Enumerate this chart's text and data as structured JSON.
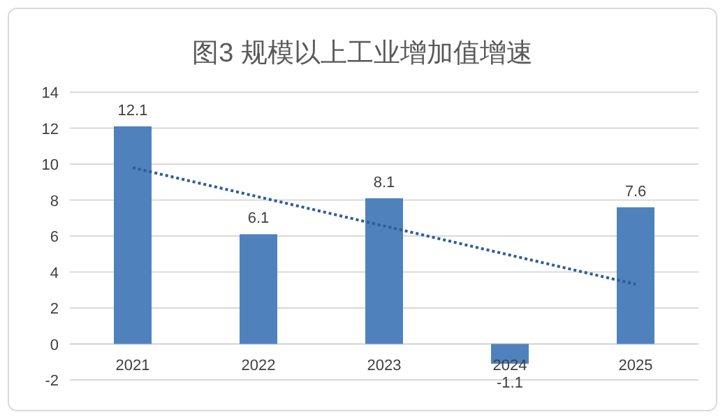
{
  "chart_data": {
    "type": "bar",
    "title": "图3 规模以上工业增加值增速",
    "categories": [
      "2021",
      "2022",
      "2023",
      "2024",
      "2025"
    ],
    "series": [
      {
        "color": "#4f81bd",
        "values": [
          12.1,
          6.1,
          8.1,
          -1.1,
          7.6
        ]
      },
      {
        "type": "line",
        "color": "#2e5c9a",
        "line_style": "dotted",
        "values": [
          9.8,
          8.18,
          6.56,
          4.94,
          3.32
        ],
        "value_labels": [
          null,
          null,
          null,
          null,
          null
        ]
      }
    ],
    "data_labels": true,
    "ylim": [
      -2,
      14
    ],
    "yticks": [
      -2,
      0,
      2,
      4,
      6,
      8,
      10,
      12,
      14
    ],
    "grid": "y"
  }
}
